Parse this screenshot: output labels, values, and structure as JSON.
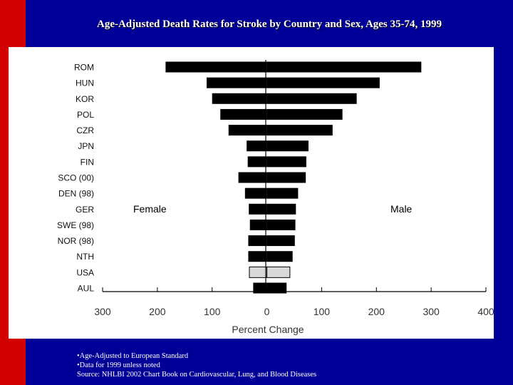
{
  "title": "Age-Adjusted Death Rates for Stroke by Country and Sex, Ages 35-74, 1999",
  "colors": {
    "red_stripe": "#d20000",
    "navy": "#000099",
    "bar": "#000000",
    "usa_bar": "#d9d9d9"
  },
  "chart_data": {
    "type": "bar",
    "orientation": "horizontal-diverging",
    "title": "",
    "xlabel": "Percent Change",
    "ylabel": "",
    "xlim": [
      -300,
      400
    ],
    "x_axis_ticks": [
      "300",
      "200",
      "100",
      "0",
      "100",
      "200",
      "300",
      "400"
    ],
    "tick_values": [
      -300,
      -200,
      -100,
      0,
      100,
      200,
      300,
      400
    ],
    "categories": [
      "ROM",
      "HUN",
      "KOR",
      "POL",
      "CZR",
      "JPN",
      "FIN",
      "SCO (00)",
      "DEN (98)",
      "GER",
      "SWE (98)",
      "NOR (98)",
      "NTH",
      "USA",
      "AUL"
    ],
    "series": [
      {
        "name": "Female",
        "values": [
          185,
          110,
          100,
          85,
          70,
          37,
          35,
          52,
          40,
          33,
          31,
          34,
          34,
          32,
          25
        ]
      },
      {
        "name": "Male",
        "values": [
          282,
          206,
          164,
          138,
          120,
          76,
          72,
          71,
          57,
          53,
          52,
          51,
          47,
          42,
          36
        ]
      }
    ],
    "highlight_category": "USA",
    "legend": [
      "Female",
      "Male"
    ]
  },
  "footnotes": [
    "•Age-Adjusted to European Standard",
    "•Data for 1999 unless noted",
    "Source: NHLBI 2002 Chart Book on Cardiovascular, Lung, and Blood Diseases"
  ]
}
